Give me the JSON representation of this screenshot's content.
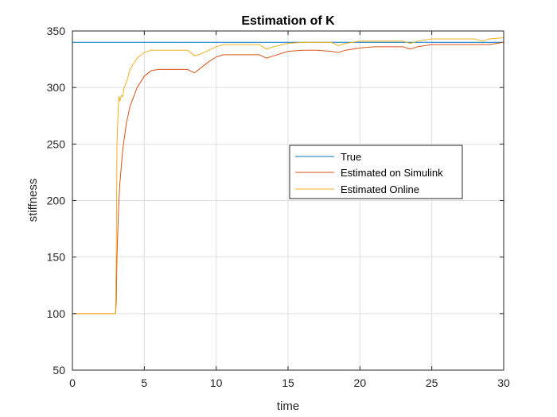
{
  "chart_data": {
    "type": "line",
    "title": "Estimation of K",
    "xlabel": "time",
    "ylabel": "stiffness",
    "xlim": [
      0,
      30
    ],
    "ylim": [
      50,
      350
    ],
    "xticks": [
      0,
      5,
      10,
      15,
      20,
      25,
      30
    ],
    "yticks": [
      50,
      100,
      150,
      200,
      250,
      300,
      350
    ],
    "grid": true,
    "legend_location": "east",
    "series": [
      {
        "name": "True",
        "color": "#0072BD",
        "x": [
          0,
          30
        ],
        "y": [
          340,
          340
        ]
      },
      {
        "name": "Estimated on Simulink",
        "color": "#D95319",
        "x": [
          0,
          3.0,
          3.05,
          3.1,
          3.2,
          3.3,
          3.5,
          3.75,
          4.0,
          4.5,
          5.0,
          5.5,
          6.0,
          7.0,
          8.0,
          8.5,
          9.0,
          9.5,
          10.0,
          10.5,
          11.0,
          12.0,
          13.0,
          13.5,
          14.0,
          15.0,
          16.0,
          17.0,
          18.0,
          18.5,
          19.0,
          20.0,
          21.0,
          22.0,
          23.0,
          23.5,
          24.0,
          25.0,
          26.0,
          27.0,
          28.0,
          29.0,
          30.0
        ],
        "y": [
          100,
          100,
          110,
          150,
          190,
          215,
          245,
          268,
          283,
          300,
          310,
          315,
          316,
          316,
          316,
          313,
          318,
          323,
          327,
          329,
          329,
          329,
          329,
          326,
          328,
          332,
          333,
          333,
          332,
          331,
          333,
          335,
          336,
          336,
          336,
          334,
          336,
          338,
          338,
          338,
          338,
          338,
          340
        ]
      },
      {
        "name": "Estimated Online",
        "color": "#EDB120",
        "x": [
          0,
          3.0,
          3.05,
          3.1,
          3.2,
          3.25,
          3.3,
          3.4,
          3.5,
          3.6,
          3.8,
          4.0,
          4.5,
          5.0,
          5.5,
          6.0,
          7.0,
          8.0,
          8.5,
          9.0,
          9.5,
          10.0,
          10.5,
          11.0,
          12.0,
          13.0,
          13.5,
          14.0,
          15.0,
          16.0,
          17.0,
          18.0,
          18.5,
          19.0,
          20.0,
          21.0,
          22.0,
          23.0,
          23.5,
          24.0,
          25.0,
          26.0,
          27.0,
          28.0,
          28.5,
          29.0,
          30.0
        ],
        "y": [
          100,
          100,
          150,
          250,
          286,
          292,
          288,
          293,
          292,
          300,
          306,
          316,
          326,
          331,
          333,
          333,
          333,
          333,
          328,
          330,
          333,
          336,
          338,
          338,
          338,
          338,
          334,
          336,
          339,
          340,
          340,
          340,
          337,
          339,
          341,
          341,
          341,
          341,
          339,
          341,
          343,
          343,
          343,
          343,
          341,
          343,
          344
        ]
      }
    ]
  }
}
